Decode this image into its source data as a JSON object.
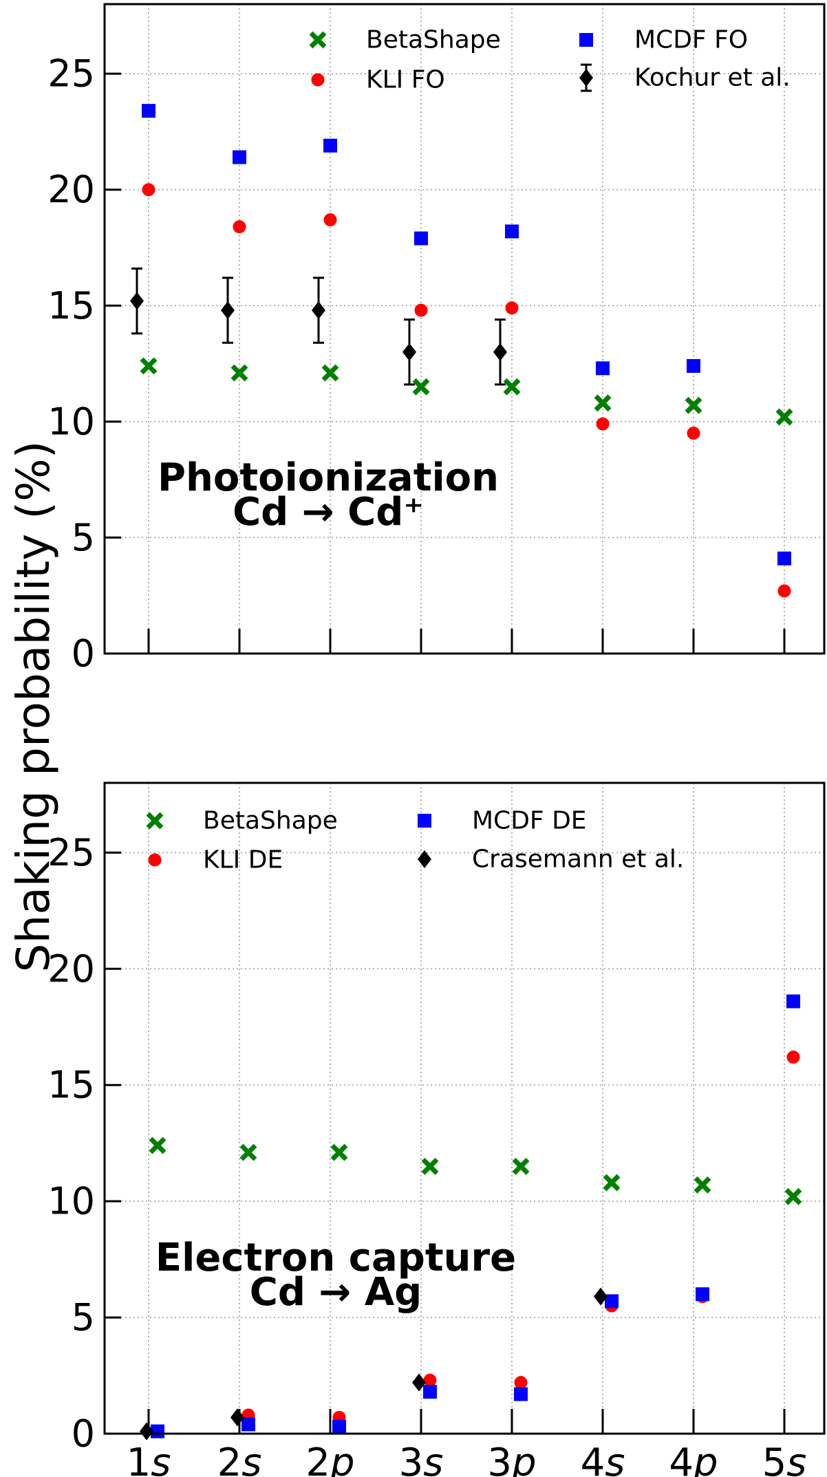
{
  "ylabel": "Shaking probability (%)",
  "colors": {
    "betashape": "#008000",
    "kli": "#ff0000",
    "mcdf": "#0000ff",
    "exp": "#000000",
    "grid": "#b0b0b0"
  },
  "chart_data": [
    {
      "type": "scatter",
      "panel": "top",
      "categories": [
        "1s",
        "2s",
        "2p",
        "3s",
        "3p",
        "4s",
        "4p",
        "5s"
      ],
      "ylim": [
        0,
        28
      ],
      "yticks": [
        0,
        5,
        10,
        15,
        20,
        25
      ],
      "grid": true,
      "show_x_tick_labels": false,
      "annotation": {
        "line1": "Photoionization",
        "line2": "Cd → Cd⁺"
      },
      "legend_position": "top",
      "series": [
        {
          "key": "betashape",
          "name": "BetaShape",
          "marker": "x",
          "color": "#008000",
          "values": [
            12.4,
            12.1,
            12.1,
            11.5,
            11.5,
            10.8,
            10.7,
            10.2
          ]
        },
        {
          "key": "kli",
          "name": "KLI FO",
          "marker": "circle",
          "color": "#ff0000",
          "values": [
            20.0,
            18.4,
            18.7,
            14.8,
            14.9,
            9.9,
            9.5,
            2.7
          ]
        },
        {
          "key": "mcdf",
          "name": "MCDF FO",
          "marker": "square",
          "color": "#0000ff",
          "values": [
            23.4,
            21.4,
            21.9,
            17.9,
            18.2,
            12.3,
            12.4,
            4.1
          ]
        },
        {
          "key": "exp",
          "name": "Kochur et al.",
          "marker": "diamond",
          "color": "#000000",
          "values": [
            15.2,
            14.8,
            14.8,
            13.0,
            13.0
          ],
          "errors": [
            1.4,
            1.4,
            1.4,
            1.4,
            1.4
          ]
        }
      ]
    },
    {
      "type": "scatter",
      "panel": "bottom",
      "categories": [
        "1s",
        "2s",
        "2p",
        "3s",
        "3p",
        "4s",
        "4p",
        "5s"
      ],
      "category_labels": [
        {
          "n": "1",
          "l": "s"
        },
        {
          "n": "2",
          "l": "s"
        },
        {
          "n": "2",
          "l": "p"
        },
        {
          "n": "3",
          "l": "s"
        },
        {
          "n": "3",
          "l": "p"
        },
        {
          "n": "4",
          "l": "s"
        },
        {
          "n": "4",
          "l": "p"
        },
        {
          "n": "5",
          "l": "s"
        }
      ],
      "ylim": [
        0,
        28
      ],
      "yticks": [
        0,
        5,
        10,
        15,
        20,
        25
      ],
      "grid": true,
      "show_x_tick_labels": true,
      "annotation": {
        "line1": "Electron capture",
        "line2": "Cd → Ag"
      },
      "legend_position": "top-left",
      "series": [
        {
          "key": "betashape",
          "name": "BetaShape",
          "marker": "x",
          "color": "#008000",
          "values": [
            12.4,
            12.1,
            12.1,
            11.5,
            11.5,
            10.8,
            10.7,
            10.2
          ]
        },
        {
          "key": "kli",
          "name": "KLI DE",
          "marker": "circle",
          "color": "#ff0000",
          "values": [
            0.1,
            0.8,
            0.7,
            2.3,
            2.2,
            5.5,
            5.9,
            16.2
          ]
        },
        {
          "key": "mcdf",
          "name": "MCDF DE",
          "marker": "square",
          "color": "#0000ff",
          "values": [
            0.1,
            0.4,
            0.3,
            1.8,
            1.7,
            5.7,
            6.0,
            18.6
          ]
        },
        {
          "key": "exp",
          "name": "Crasemann et al.",
          "marker": "diamond",
          "color": "#000000",
          "values": [
            0.1,
            0.7,
            null,
            2.2,
            null,
            5.9,
            null,
            null
          ]
        }
      ]
    }
  ]
}
